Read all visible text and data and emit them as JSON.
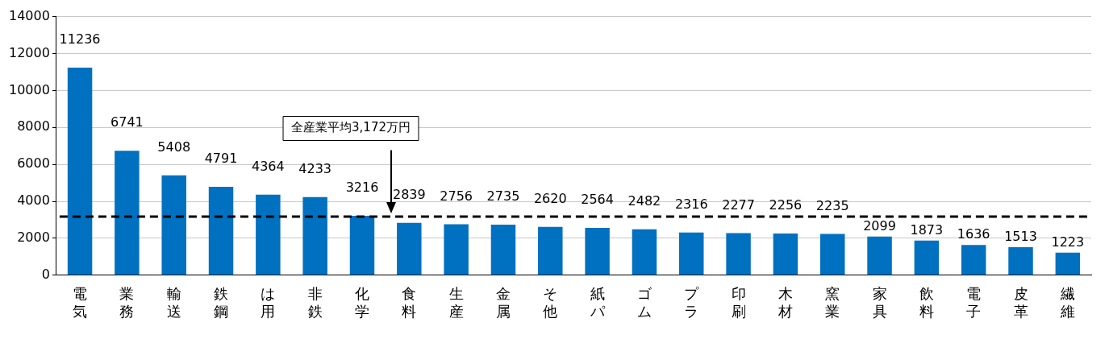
{
  "chart_data": {
    "type": "bar",
    "categories": [
      "電気",
      "業務",
      "輸送",
      "鉄鋼",
      "は用",
      "非鉄",
      "化学",
      "食料",
      "生産",
      "金属",
      "そ他",
      "紙パ",
      "ゴム",
      "プラ",
      "印刷",
      "木材",
      "窯業",
      "家具",
      "飲料",
      "電子",
      "皮革",
      "繊維"
    ],
    "values": [
      11236,
      6741,
      5408,
      4791,
      4364,
      4233,
      3216,
      2839,
      2756,
      2735,
      2620,
      2564,
      2482,
      2316,
      2277,
      2256,
      2235,
      2099,
      1873,
      1636,
      1513,
      1223
    ],
    "color": "#0070c0",
    "ylim": [
      0,
      14000
    ],
    "yticks": [
      0,
      2000,
      4000,
      6000,
      8000,
      10000,
      12000,
      14000
    ],
    "grid": "y",
    "legend": false,
    "data_labels": true,
    "ref_lines": [
      {
        "axis": "y",
        "value": 3172,
        "label": "全産業平均3,172万円",
        "color": "#000000",
        "line_style": "dashed"
      }
    ]
  }
}
